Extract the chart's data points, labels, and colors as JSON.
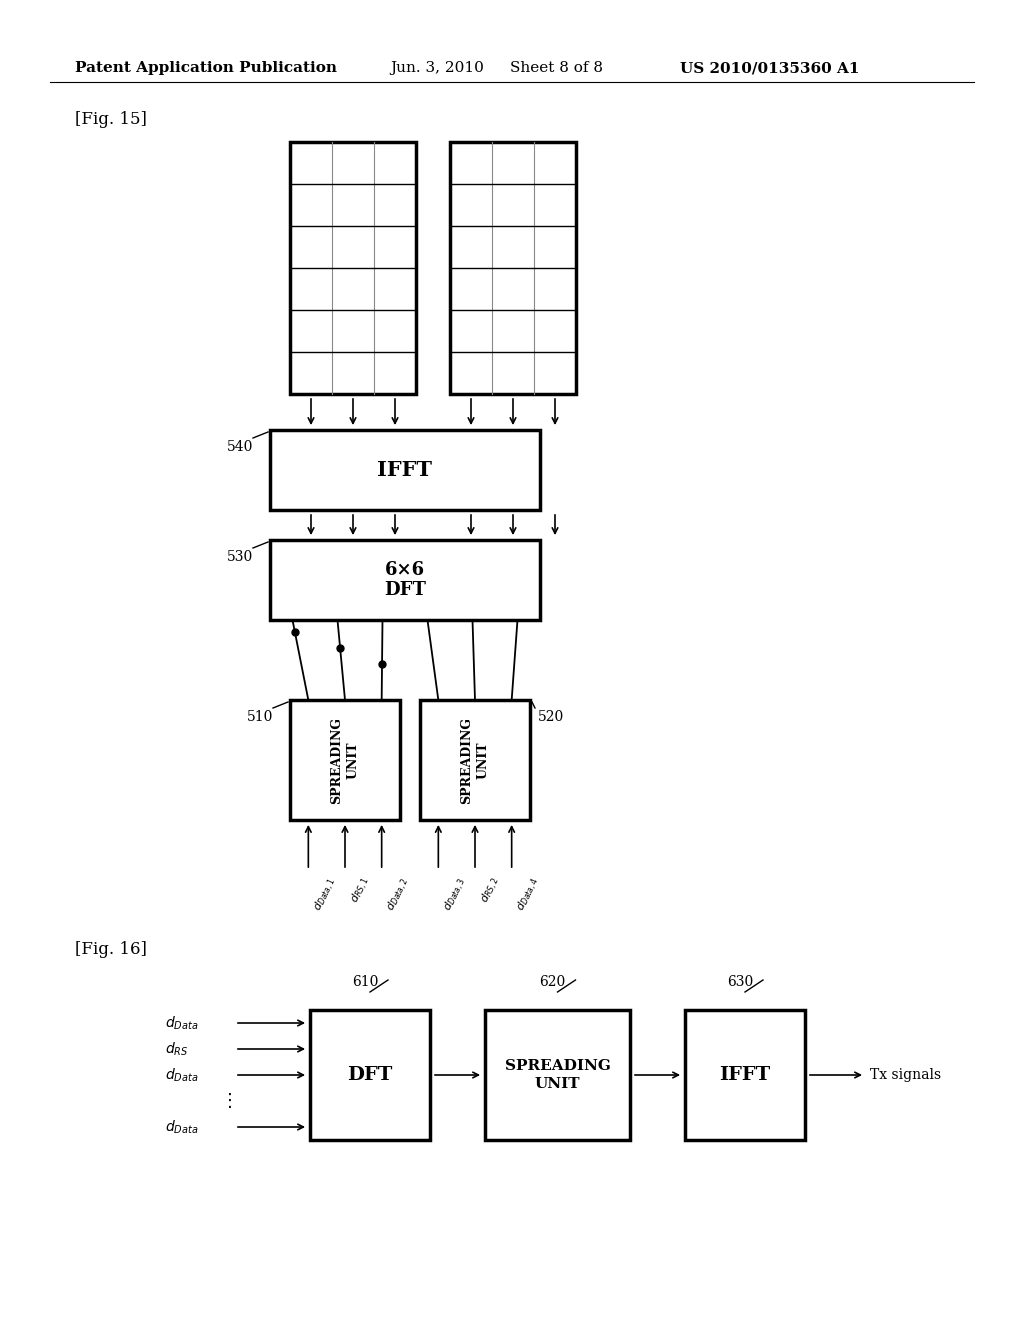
{
  "bg_color": "#ffffff",
  "header_text": "Patent Application Publication",
  "header_date": "Jun. 3, 2010",
  "header_sheet": "Sheet 8 of 8",
  "header_patent": "US 2010/0135360 A1",
  "fig15_label": "[Fig. 15]",
  "fig16_label": "[Fig. 16]"
}
